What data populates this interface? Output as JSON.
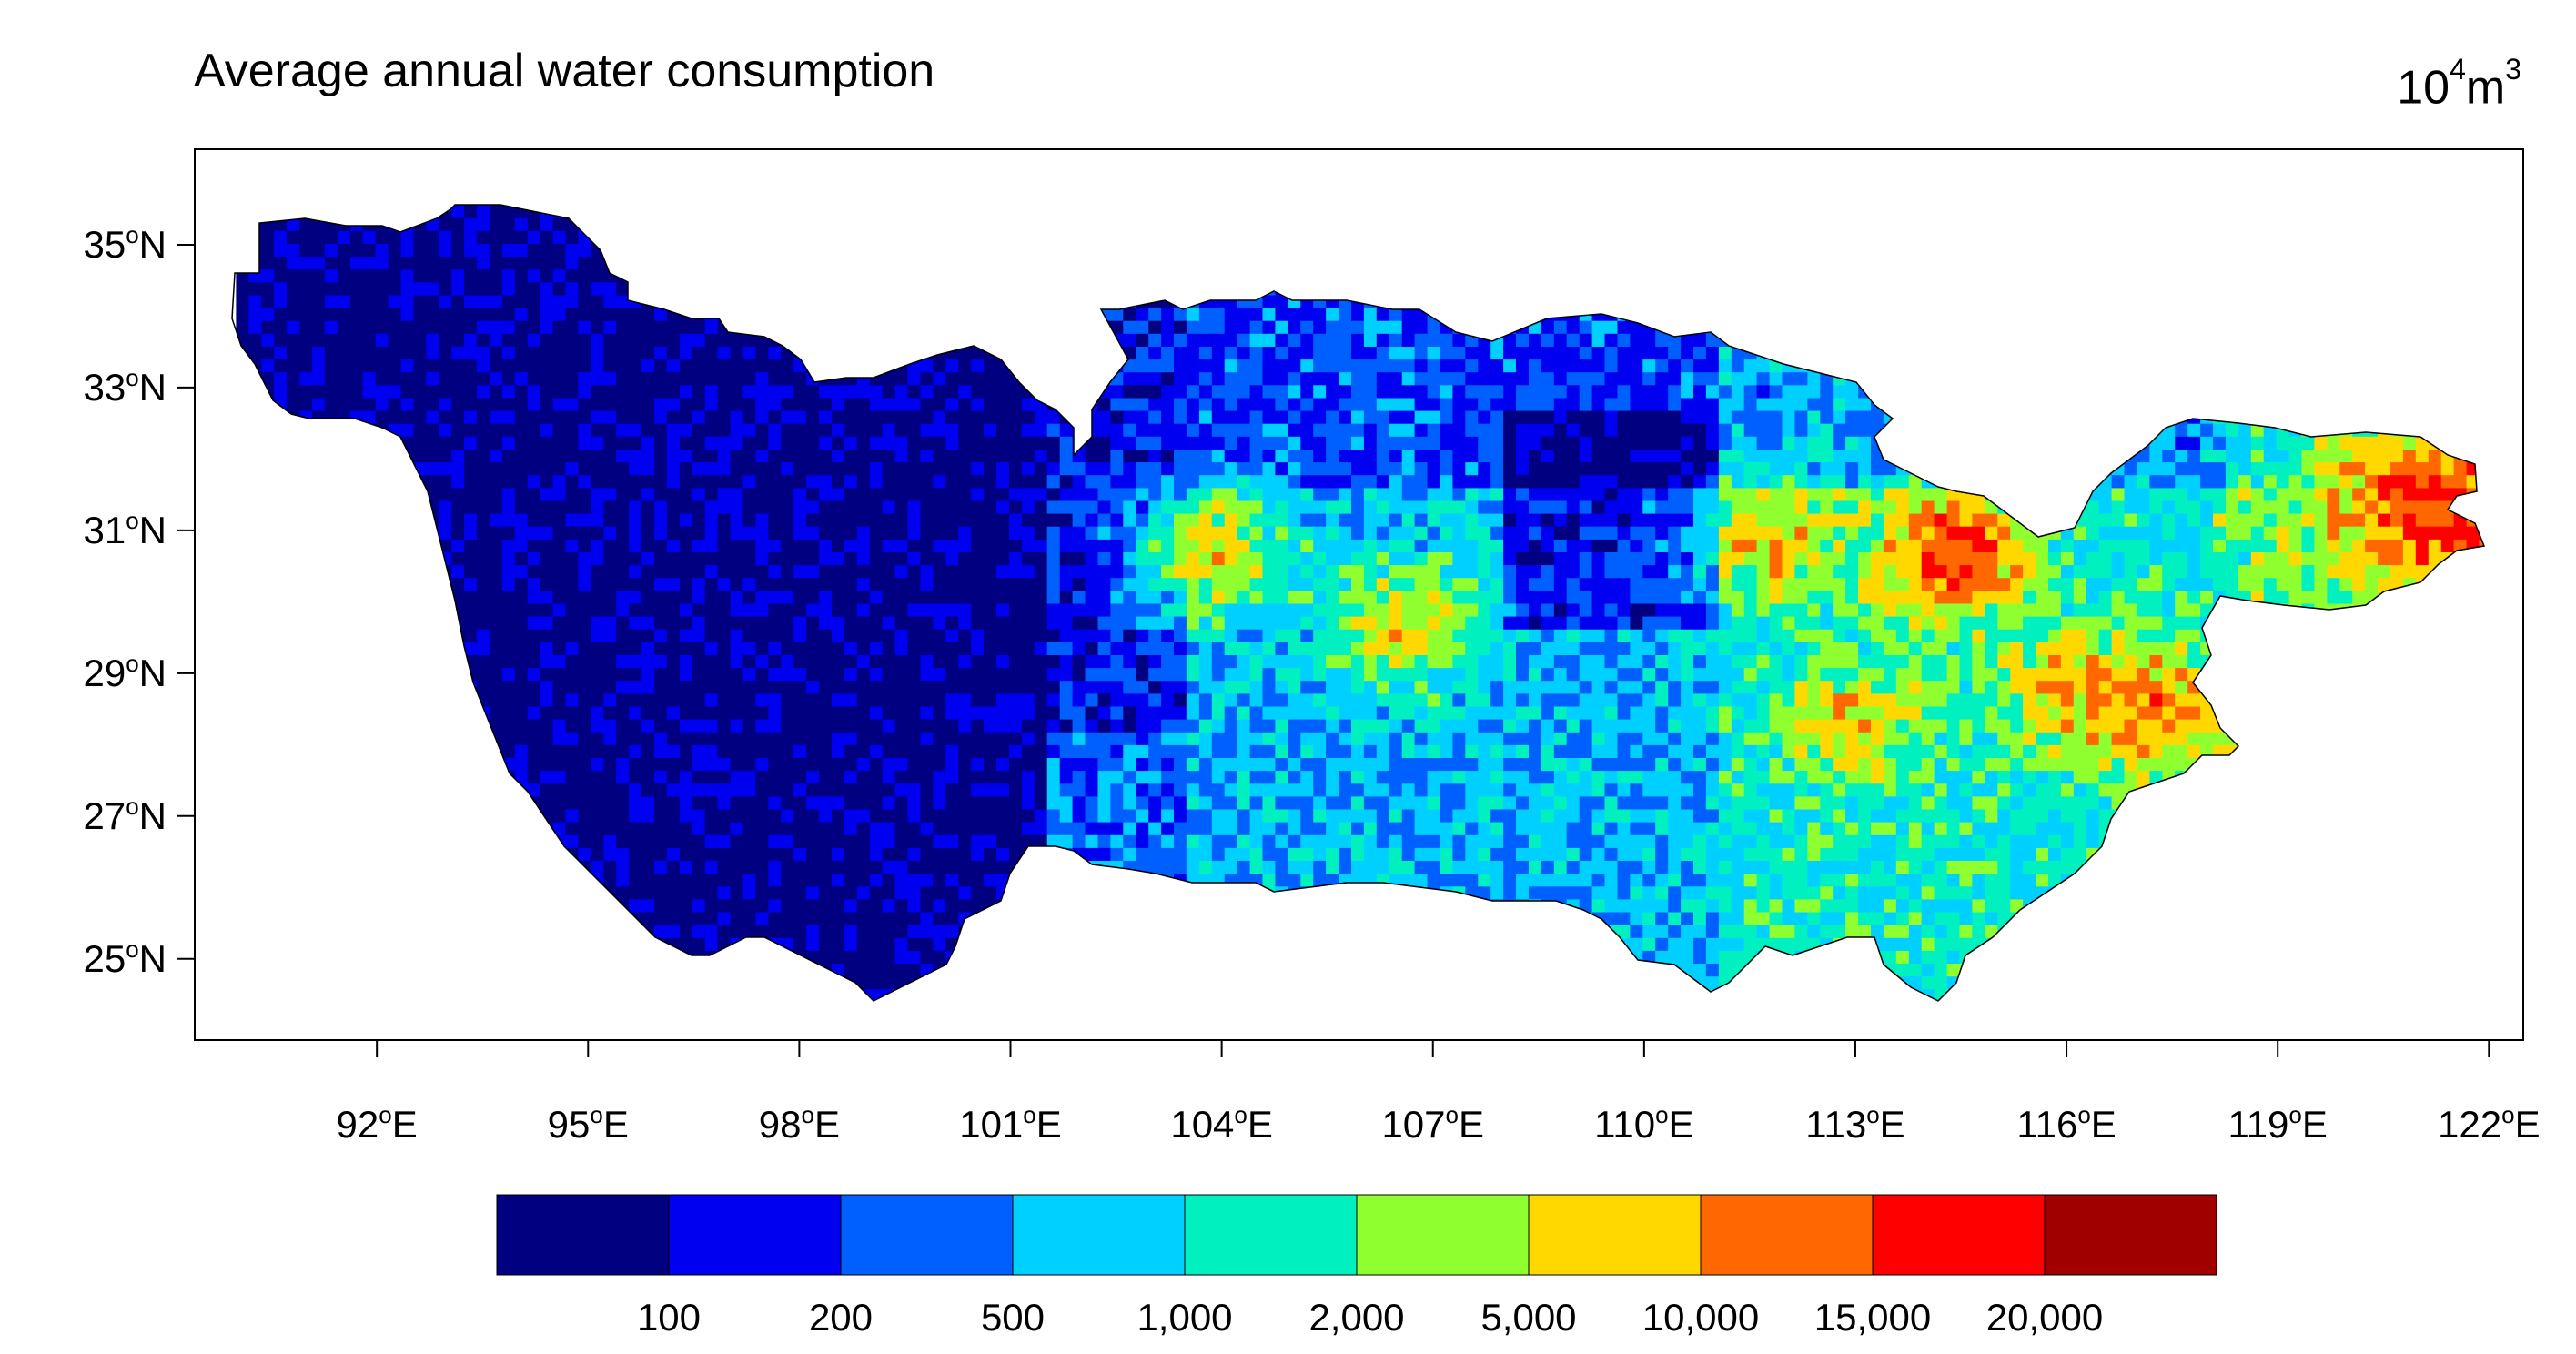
{
  "title": "Average annual water consumption",
  "units": {
    "base": "10",
    "exp": "4",
    "tail": "m",
    "tail_exp": "3"
  },
  "lat_axis": {
    "suffix": "N",
    "ticks": [
      {
        "value": 35,
        "label": "35"
      },
      {
        "value": 33,
        "label": "33"
      },
      {
        "value": 31,
        "label": "31"
      },
      {
        "value": 29,
        "label": "29"
      },
      {
        "value": 27,
        "label": "27"
      },
      {
        "value": 25,
        "label": "25"
      }
    ]
  },
  "lon_axis": {
    "suffix": "E",
    "ticks": [
      {
        "value": 92,
        "label": "92"
      },
      {
        "value": 95,
        "label": "95"
      },
      {
        "value": 98,
        "label": "98"
      },
      {
        "value": 101,
        "label": "101"
      },
      {
        "value": 104,
        "label": "104"
      },
      {
        "value": 107,
        "label": "107"
      },
      {
        "value": 110,
        "label": "110"
      },
      {
        "value": 113,
        "label": "113"
      },
      {
        "value": 116,
        "label": "116"
      },
      {
        "value": 119,
        "label": "119"
      },
      {
        "value": 122,
        "label": "122"
      }
    ]
  },
  "colorbar": {
    "colors": [
      "#000080",
      "#0000f0",
      "#0060ff",
      "#00d0ff",
      "#00f0c0",
      "#90ff30",
      "#ffd800",
      "#ff6800",
      "#ff0000",
      "#a00000"
    ],
    "labels": [
      "100",
      "200",
      "500",
      "1,000",
      "2,000",
      "5,000",
      "10,000",
      "15,000",
      "20,000"
    ]
  },
  "hotspots": [
    {
      "lon": 103.7,
      "lat": 30.6,
      "level": 6
    },
    {
      "lon": 106.5,
      "lat": 29.6,
      "level": 6
    },
    {
      "lon": 111.8,
      "lat": 30.8,
      "level": 6
    },
    {
      "lon": 114.3,
      "lat": 30.6,
      "level": 8
    },
    {
      "lon": 112.9,
      "lat": 28.2,
      "level": 6
    },
    {
      "lon": 115.9,
      "lat": 28.7,
      "level": 6
    },
    {
      "lon": 117.2,
      "lat": 28.3,
      "level": 7
    },
    {
      "lon": 120.9,
      "lat": 31.4,
      "level": 7
    },
    {
      "lon": 121.4,
      "lat": 31.2,
      "level": 8
    },
    {
      "lon": 120.2,
      "lat": 31.7,
      "level": 6
    }
  ]
}
